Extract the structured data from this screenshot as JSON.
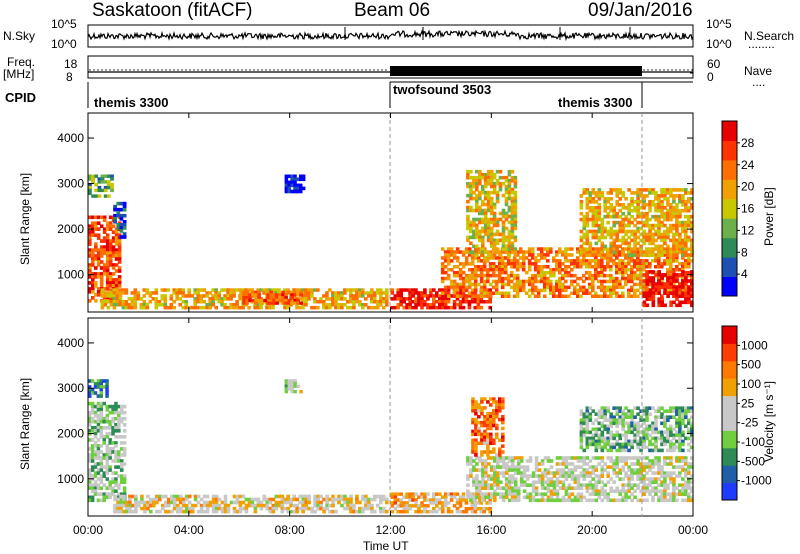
{
  "header": {
    "station": "Saskatoon (fitACF)",
    "beam": "Beam 06",
    "date": "09/Jan/2016"
  },
  "strips": {
    "nsky_label": "N.Sky",
    "nsearch_label": "N.Search",
    "noise_ticks": [
      "10^5",
      "10^0"
    ],
    "noise_ticks_right": [
      "10^5",
      "10^0"
    ],
    "freq_label_1": "Freq.",
    "freq_label_2": "[MHz]",
    "freq_ticks": [
      "18",
      "8"
    ],
    "nave_label": "Nave",
    "nave_ticks": [
      "60",
      "0"
    ],
    "cpid_label": "CPID",
    "cpid_segments": [
      "themis 3300",
      "twofsound 3503",
      "themis 3300"
    ]
  },
  "colors": {
    "power": [
      "#0000ff",
      "#1e50b4",
      "#2f8b55",
      "#6bb04a",
      "#c8c800",
      "#f0a000",
      "#ff6e00",
      "#ff3200",
      "#e60000"
    ],
    "velocity": [
      "#1e3cff",
      "#1f5fa8",
      "#2f8b55",
      "#6fcf3f",
      "#c8c8c8",
      "#c8c8c8",
      "#f0a000",
      "#ff7800",
      "#ff3c00",
      "#e60000"
    ]
  },
  "chart_data": [
    {
      "type": "heatmap",
      "title": "",
      "xlabel": "Time UT",
      "ylabel": "Slant Range [km]",
      "xticks": [
        "00:00",
        "04:00",
        "08:00",
        "12:00",
        "16:00",
        "20:00",
        "00:00"
      ],
      "yticks": [
        "1000",
        "2000",
        "3000",
        "4000"
      ],
      "ylim": [
        180,
        4550
      ],
      "colorbar_label": "Power [dB]",
      "colorbar_ticks": [
        "28",
        "24",
        "20",
        "16",
        "12",
        "8",
        "4"
      ],
      "regions": [
        {
          "t0": 0.0,
          "t1": 1.3,
          "r0": 400,
          "r1": 2300,
          "level": 0.8
        },
        {
          "t0": 1.0,
          "t1": 1.5,
          "r0": 1800,
          "r1": 2600,
          "level": 0.15
        },
        {
          "t0": 0.0,
          "t1": 1.0,
          "r0": 2700,
          "r1": 3200,
          "level": 0.35
        },
        {
          "t0": 0.5,
          "t1": 11.9,
          "r0": 250,
          "r1": 700,
          "level": 0.6
        },
        {
          "t0": 6.0,
          "t1": 8.5,
          "r0": 350,
          "r1": 650,
          "level": 0.75
        },
        {
          "t0": 7.8,
          "t1": 8.6,
          "r0": 2800,
          "r1": 3200,
          "level": 0.05
        },
        {
          "t0": 12.0,
          "t1": 16.0,
          "r0": 250,
          "r1": 700,
          "level": 0.9
        },
        {
          "t0": 14.0,
          "t1": 24.0,
          "r0": 500,
          "r1": 1600,
          "level": 0.7
        },
        {
          "t0": 15.0,
          "t1": 17.0,
          "r0": 1400,
          "r1": 3300,
          "level": 0.55
        },
        {
          "t0": 19.5,
          "t1": 24.0,
          "r0": 1400,
          "r1": 2900,
          "level": 0.6
        },
        {
          "t0": 22.0,
          "t1": 24.0,
          "r0": 300,
          "r1": 1100,
          "level": 0.95
        }
      ]
    },
    {
      "type": "heatmap",
      "title": "",
      "xlabel": "Time UT",
      "ylabel": "Slant Range [km]",
      "xticks": [
        "00:00",
        "04:00",
        "08:00",
        "12:00",
        "16:00",
        "20:00",
        "00:00"
      ],
      "yticks": [
        "1000",
        "2000",
        "3000",
        "4000"
      ],
      "ylim": [
        180,
        4550
      ],
      "colorbar_label": "Velocity [m s⁻¹]",
      "colorbar_ticks": [
        "1000",
        "500",
        "100",
        "25",
        "-25",
        "-100",
        "-500",
        "-1000"
      ],
      "regions": [
        {
          "t0": 0.0,
          "t1": 1.5,
          "r0": 500,
          "r1": 2700,
          "level": 0.4
        },
        {
          "t0": 1.0,
          "t1": 11.9,
          "r0": 250,
          "r1": 650,
          "level": 0.55
        },
        {
          "t0": 0.0,
          "t1": 0.8,
          "r0": 2800,
          "r1": 3200,
          "level": 0.2
        },
        {
          "t0": 7.8,
          "t1": 8.5,
          "r0": 2900,
          "r1": 3200,
          "level": 0.45
        },
        {
          "t0": 12.0,
          "t1": 16.0,
          "r0": 250,
          "r1": 700,
          "level": 0.65
        },
        {
          "t0": 15.0,
          "t1": 24.0,
          "r0": 500,
          "r1": 1500,
          "level": 0.48
        },
        {
          "t0": 15.2,
          "t1": 16.5,
          "r0": 1500,
          "r1": 2800,
          "level": 0.75
        },
        {
          "t0": 19.5,
          "t1": 24.0,
          "r0": 1600,
          "r1": 2600,
          "level": 0.35
        }
      ]
    }
  ]
}
